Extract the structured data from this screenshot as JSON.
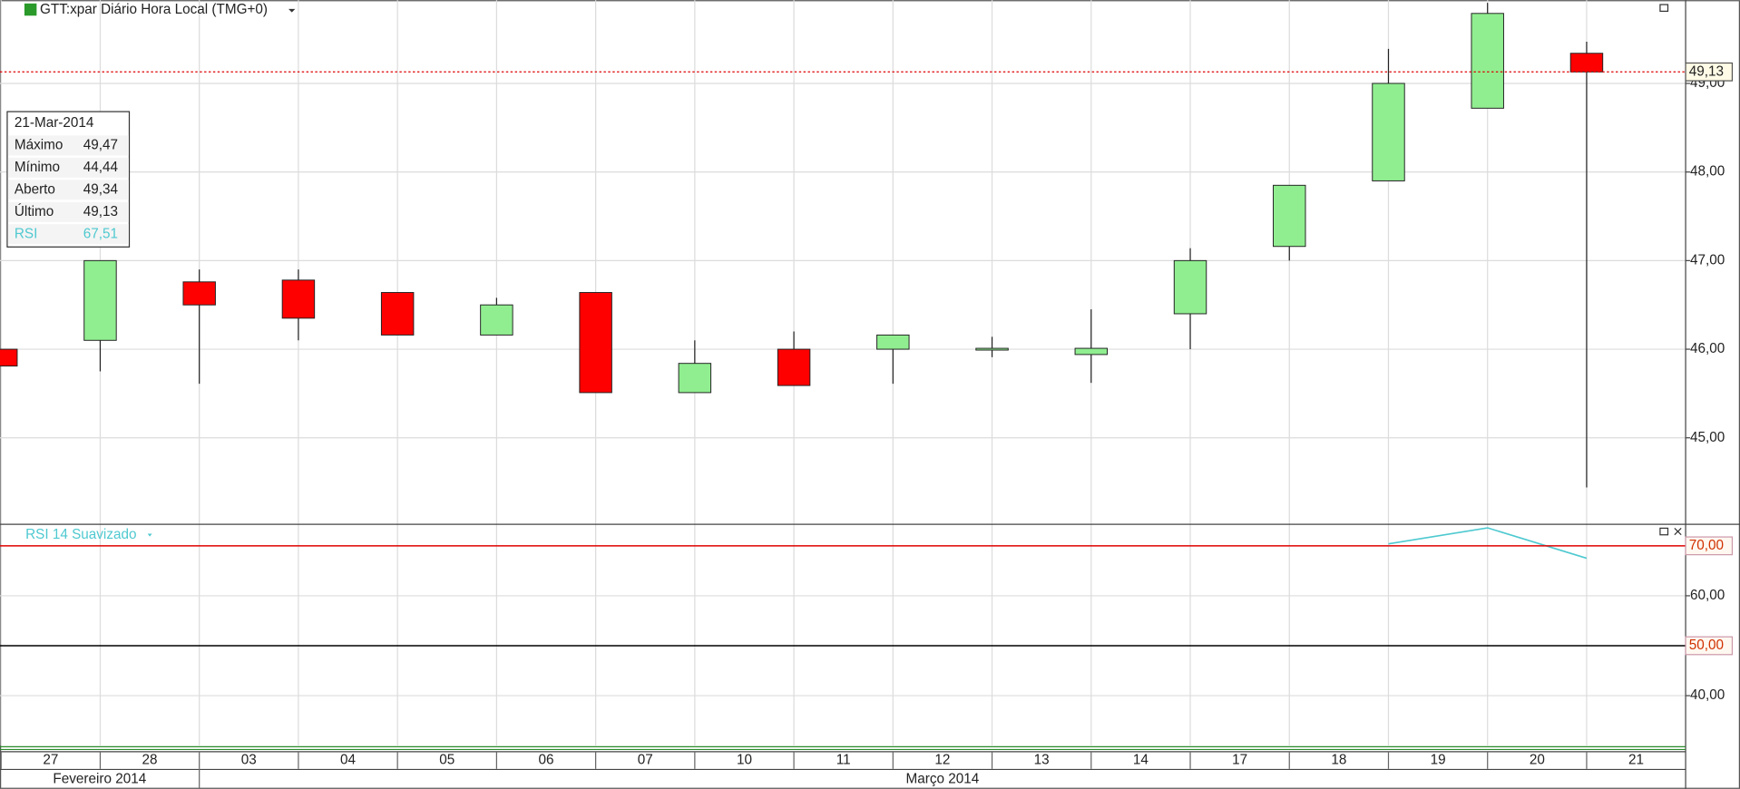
{
  "chart_data": [
    {
      "type": "candlestick",
      "title": "GTT:xpar Diário Hora Local (TMG+0)",
      "categories": [
        "27",
        "28",
        "03",
        "04",
        "05",
        "06",
        "07",
        "10",
        "11",
        "12",
        "13",
        "14",
        "17",
        "18",
        "19",
        "20",
        "21"
      ],
      "open": [
        46.0,
        46.1,
        46.76,
        46.78,
        46.64,
        46.16,
        46.64,
        45.51,
        46.0,
        46.0,
        45.99,
        45.94,
        46.4,
        47.16,
        47.9,
        48.72,
        49.34
      ],
      "high": [
        46.0,
        47.0,
        46.9,
        46.9,
        46.64,
        46.58,
        46.64,
        46.1,
        46.2,
        46.16,
        46.14,
        46.45,
        47.14,
        47.85,
        49.39,
        49.91,
        49.47
      ],
      "low": [
        45.81,
        45.75,
        45.61,
        46.1,
        46.16,
        46.16,
        45.51,
        45.51,
        45.59,
        45.61,
        45.91,
        45.62,
        46.0,
        47.0,
        47.9,
        48.72,
        44.44
      ],
      "close": [
        45.81,
        47.0,
        46.5,
        46.35,
        46.16,
        46.5,
        45.51,
        45.84,
        45.59,
        46.16,
        46.01,
        46.01,
        47.0,
        47.85,
        49.0,
        49.79,
        49.13
      ],
      "up_color": "#90ee90",
      "down_color": "#ff0000",
      "ylim": [
        44.03,
        49.94
      ],
      "yticks": [
        {
          "value": 45,
          "label": "45,00"
        },
        {
          "value": 46,
          "label": "46,00"
        },
        {
          "value": 47,
          "label": "47,00"
        },
        {
          "value": 48,
          "label": "48,00"
        },
        {
          "value": 49,
          "label": "49,00"
        }
      ],
      "grid": true,
      "last_price": {
        "value": 49.13,
        "label": "49,13"
      },
      "months": [
        "Fevereiro 2014",
        "Março 2014"
      ],
      "tooltip": {
        "date": "21-Mar-2014",
        "rows": [
          [
            "Máximo",
            "49,47"
          ],
          [
            "Mínimo",
            "44,44"
          ],
          [
            "Aberto",
            "49,34"
          ],
          [
            "Último",
            "49,13"
          ],
          [
            "RSI",
            "67,51"
          ]
        ]
      }
    },
    {
      "type": "line",
      "title": "RSI 14 Suavizado",
      "values": [
        null,
        null,
        null,
        null,
        null,
        null,
        null,
        null,
        null,
        null,
        null,
        null,
        null,
        null,
        70.4,
        73.6,
        67.51
      ],
      "color": "#4ec9d0",
      "ylim": [
        30,
        74.2
      ],
      "yticks": [
        {
          "value": 40,
          "label": "40,00"
        },
        {
          "value": 60,
          "label": "60,00"
        }
      ],
      "levels": [
        {
          "value": 70,
          "label": "70,00",
          "color": "#e00000"
        },
        {
          "value": 50,
          "label": "50,00",
          "color": "#000000"
        }
      ]
    }
  ]
}
